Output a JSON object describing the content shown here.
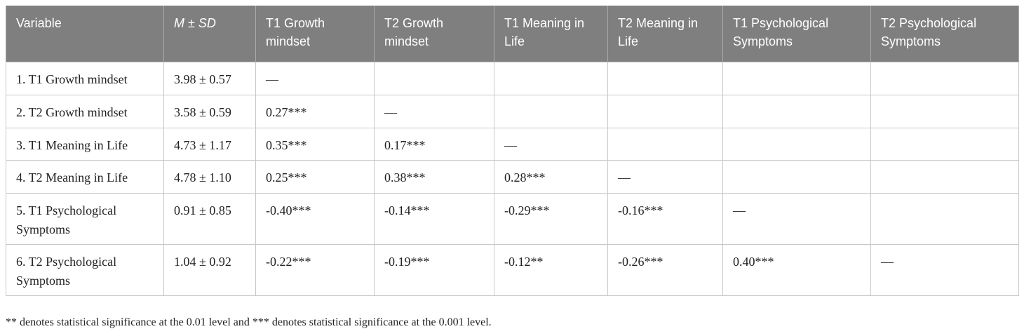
{
  "table": {
    "headers": [
      "Variable",
      "M ± SD",
      "T1 Growth mindset",
      "T2 Growth mindset",
      "T1 Meaning in Life",
      "T2 Meaning in Life",
      "T1 Psychological Symptoms",
      "T2 Psychological Symptoms"
    ],
    "rows": [
      [
        "1. T1 Growth mindset",
        "3.98 ± 0.57",
        "—",
        "",
        "",
        "",
        "",
        ""
      ],
      [
        "2. T2 Growth mindset",
        "3.58 ± 0.59",
        "0.27***",
        "—",
        "",
        "",
        "",
        ""
      ],
      [
        "3. T1 Meaning in Life",
        "4.73 ± 1.17",
        "0.35***",
        "0.17***",
        "—",
        "",
        "",
        ""
      ],
      [
        "4. T2 Meaning in Life",
        "4.78 ± 1.10",
        "0.25***",
        "0.38***",
        "0.28***",
        "—",
        "",
        ""
      ],
      [
        "5. T1 Psychological Symptoms",
        "0.91 ± 0.85",
        "-0.40***",
        "-0.14***",
        "-0.29***",
        "-0.16***",
        "—",
        ""
      ],
      [
        "6. T2 Psychological Symptoms",
        "1.04 ± 0.92",
        "-0.22***",
        "-0.19***",
        "-0.12**",
        "-0.26***",
        "0.40***",
        "—"
      ]
    ]
  },
  "footnote": "** denotes statistical significance at the 0.01 level and *** denotes statistical significance at the 0.001 level."
}
